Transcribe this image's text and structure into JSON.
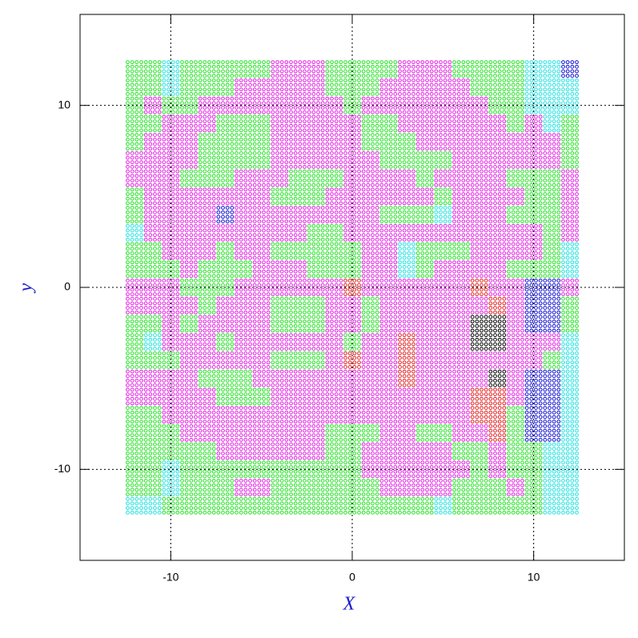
{
  "chart_data": {
    "type": "scatter-grid",
    "x_label": "X",
    "y_label": "y",
    "xlim": [
      -15,
      15
    ],
    "ylim": [
      -15,
      15
    ],
    "xticks": [
      -10,
      0,
      10
    ],
    "yticks": [
      -10,
      0,
      10
    ],
    "grid": true,
    "cell_x": [
      -12,
      -11,
      -10,
      -9,
      -8,
      -7,
      -6,
      -5,
      -4,
      -3,
      -2,
      -1,
      0,
      1,
      2,
      3,
      4,
      5,
      6,
      7,
      8,
      9,
      10,
      11,
      12
    ],
    "cell_y": [
      12,
      11,
      10,
      9,
      8,
      7,
      6,
      5,
      4,
      3,
      2,
      1,
      0,
      -1,
      -2,
      -3,
      -4,
      -5,
      -6,
      -7,
      -8,
      -9,
      -10,
      -11,
      -12
    ],
    "points_per_cell": 4,
    "palette": {
      "g": "#22e022",
      "m": "#e020e0",
      "c": "#20e0e0",
      "r": "#e02020",
      "k": "#000000",
      "b": "#1010d0"
    },
    "rows": [
      "ggcgggggmmmggggmmmggggccb",
      "ggcgggmmmmmgggmmmmmgggccc",
      "gmggmmmmmmmmgmmmmmmmggccc",
      "ggmmmgggmmmmmggmmmmmmgmcg",
      "gmmmggggmmmmmgggmmmmmmmmg",
      "mmmmggggmmmmmmggggmmmmmmg",
      "mmmgggmmmgggmmmmgmmmmgggm",
      "gmmmmmmmgggmmmmmmgmmmmggm",
      "gmmmmbmmmmmmmmgggcmmmgggm",
      "cmmmmmmmmmggmmmmmmmmmmmgm",
      "ggmmmgmmgggggmmcgggmmmmgc",
      "gggmgggmmmgggmmcgmmmmgggc",
      "mmmgggmmmmmmrmmmmmmrmmbbm",
      "mmmmgmmmgggmmgmmmmmmrmbbg",
      "ggmgmmmmgggmmgmmmmmkkmbbg",
      "gcmmmgmmmmmmgmmrmmmkkmmmc",
      "gggmmmmmgggmrmmrmmmmmmmgc",
      "mmmmgggmmmmmmmmrmmmmkmbbc",
      "mmmmmgggmmmmmmmmmmmrrmbbc",
      "ggmmmmmmmmmmmmmmmmmrrgbbc",
      "gggmmmmmmmmgggmmggmmrgbbc",
      "gggggmmmmmmggmmmmmggmggcc",
      "ggcggggggggggmmmmmmgmggcc",
      "ggcgggmmggggggmmmmgggmgcc",
      "ccgggggggggggggggcgggggcc"
    ]
  }
}
